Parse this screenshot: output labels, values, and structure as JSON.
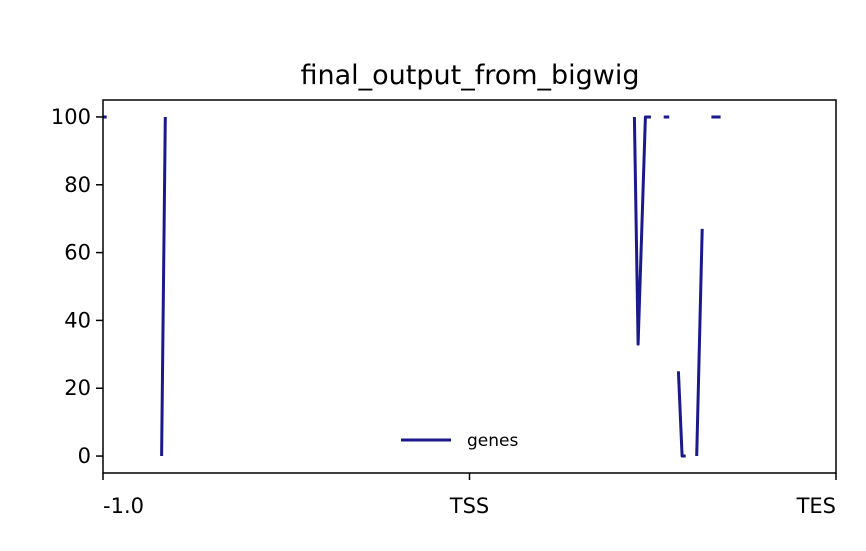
{
  "chart_data": {
    "type": "line",
    "title": "final_output_from_bigwig",
    "xlabel": "",
    "ylabel": "",
    "x_ticks": [
      {
        "pos": 0,
        "label": "-1.0"
      },
      {
        "pos": 100,
        "label": "TSS"
      },
      {
        "pos": 200,
        "label": "TES"
      }
    ],
    "xlim": [
      0,
      200
    ],
    "ylim": [
      -5,
      105
    ],
    "y_ticks": [
      0,
      20,
      40,
      60,
      80,
      100
    ],
    "grid": false,
    "legend_position": "lower center",
    "series": [
      {
        "name": "genes",
        "color": "#1a1a8c",
        "segments": [
          [
            [
              0,
              100
            ],
            [
              1,
              100
            ]
          ],
          [
            [
              16,
              0
            ],
            [
              17,
              100
            ]
          ],
          [
            [
              145,
              100
            ],
            [
              146,
              33
            ],
            [
              148,
              100
            ],
            [
              149.5,
              100
            ]
          ],
          [
            [
              153,
              100
            ],
            [
              154.5,
              100
            ]
          ],
          [
            [
              157,
              25
            ],
            [
              158,
              0
            ],
            [
              159,
              0
            ]
          ],
          [
            [
              162,
              0
            ],
            [
              163.5,
              67
            ]
          ],
          [
            [
              166,
              100
            ],
            [
              168.5,
              100
            ]
          ]
        ]
      }
    ]
  }
}
